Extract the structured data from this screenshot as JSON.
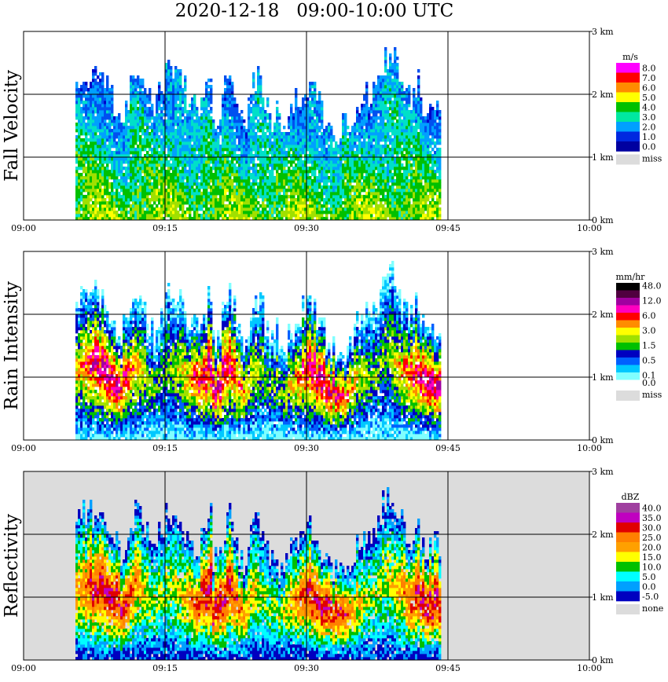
{
  "title": "2020-12-18   09:00-10:00 UTC",
  "chart_data": [
    {
      "type": "heatmap",
      "ylabel": "Fall Velocity",
      "x_ticks": [
        "09:00",
        "09:15",
        "09:30",
        "09:45",
        "10:00"
      ],
      "y_ticks": [
        "0 km",
        "1 km",
        "2 km",
        "3 km"
      ],
      "xlim_minutes": [
        0,
        60
      ],
      "ylim_km": [
        0,
        3.0
      ],
      "background": "#ffffff",
      "colorbar": {
        "unit": "m/s",
        "entries": [
          {
            "label": "8.0",
            "color": "#ff00ff"
          },
          {
            "label": "7.0",
            "color": "#ff0000"
          },
          {
            "label": "6.0",
            "color": "#ff8c00"
          },
          {
            "label": "5.0",
            "color": "#ffff00"
          },
          {
            "label": "4.0",
            "color": "#00c000"
          },
          {
            "label": "3.0",
            "color": "#00e8a0"
          },
          {
            "label": "2.0",
            "color": "#00a0ff"
          },
          {
            "label": "1.0",
            "color": "#0028e0"
          },
          {
            "label": "0.0",
            "color": "#0000a0"
          }
        ],
        "miss_label": "miss",
        "miss_color": "#dcdcdc"
      },
      "palette": [
        "#0000c8",
        "#0050f0",
        "#00a0ff",
        "#00e0c8",
        "#00c000",
        "#a0e000",
        "#ffff00",
        "#ff8c00"
      ],
      "seed": 11,
      "mode": "velocity"
    },
    {
      "type": "heatmap",
      "ylabel": "Rain Intensity",
      "x_ticks": [
        "09:00",
        "09:15",
        "09:30",
        "09:45",
        "10:00"
      ],
      "y_ticks": [
        "0 km",
        "1 km",
        "2 km",
        "3 km"
      ],
      "xlim_minutes": [
        0,
        60
      ],
      "ylim_km": [
        0,
        3.0
      ],
      "background": "#ffffff",
      "colorbar": {
        "unit": "mm/hr",
        "entries": [
          {
            "label": "48.0",
            "color": "#000000"
          },
          {
            "label": "",
            "color": "#500040"
          },
          {
            "label": "12.0",
            "color": "#a000a0"
          },
          {
            "label": "",
            "color": "#ff00c0"
          },
          {
            "label": "6.0",
            "color": "#ff0000"
          },
          {
            "label": "",
            "color": "#ff8c00"
          },
          {
            "label": "3.0",
            "color": "#ffff00"
          },
          {
            "label": "",
            "color": "#a0e000"
          },
          {
            "label": "1.5",
            "color": "#00c000"
          },
          {
            "label": "",
            "color": "#0000c0"
          },
          {
            "label": "0.5",
            "color": "#0060ff"
          },
          {
            "label": "",
            "color": "#00c8ff"
          },
          {
            "label": "0.1",
            "color": "#80ffff"
          },
          {
            "label": "0.0",
            "color": "#ffffff"
          }
        ],
        "miss_label": "miss",
        "miss_color": "#dcdcdc"
      },
      "palette": [
        "#80ffff",
        "#00c8ff",
        "#0060ff",
        "#0000c0",
        "#00c000",
        "#a0e000",
        "#ffff00",
        "#ff8c00",
        "#ff0000",
        "#ff00c0",
        "#a000a0"
      ],
      "seed": 23,
      "mode": "rain"
    },
    {
      "type": "heatmap",
      "ylabel": "Reflectivity",
      "x_ticks": [
        "09:00",
        "09:15",
        "09:30",
        "09:45",
        "10:00"
      ],
      "y_ticks": [
        "0 km",
        "1 km",
        "2 km",
        "3 km"
      ],
      "xlim_minutes": [
        0,
        60
      ],
      "ylim_km": [
        0,
        3.0
      ],
      "background": "#dcdcdc",
      "colorbar": {
        "unit": "dBZ",
        "entries": [
          {
            "label": "40.0",
            "color": "#a040a0"
          },
          {
            "label": "35.0",
            "color": "#c000c0"
          },
          {
            "label": "30.0",
            "color": "#e00000"
          },
          {
            "label": "25.0",
            "color": "#ff8000"
          },
          {
            "label": "20.0",
            "color": "#ffa000"
          },
          {
            "label": "15.0",
            "color": "#ffff00"
          },
          {
            "label": "10.0",
            "color": "#00c000"
          },
          {
            "label": "5.0",
            "color": "#00ffff"
          },
          {
            "label": "0.0",
            "color": "#00a0ff"
          },
          {
            "label": "-5.0",
            "color": "#0000c0"
          }
        ],
        "miss_label": "none",
        "miss_color": "#dcdcdc"
      },
      "palette": [
        "#0000c0",
        "#00a0ff",
        "#00ffff",
        "#00c000",
        "#ffff00",
        "#ffa000",
        "#ff8000",
        "#e00000",
        "#c000c0"
      ],
      "seed": 37,
      "mode": "refl"
    }
  ]
}
